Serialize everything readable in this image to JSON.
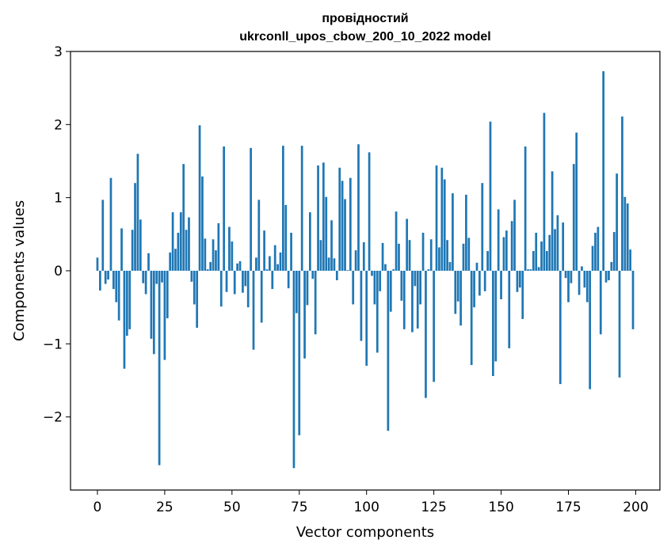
{
  "chart_data": {
    "type": "bar",
    "title_line1": "провідностий",
    "title_line2": "ukrconll_upos_cbow_200_10_2022 model",
    "xlabel": "Vector components",
    "ylabel": "Components values",
    "xlim": [
      -10,
      209
    ],
    "ylim": [
      -3.0,
      3.0
    ],
    "xticks": [
      0,
      25,
      50,
      75,
      100,
      125,
      150,
      175,
      200
    ],
    "xtick_labels": [
      "0",
      "25",
      "50",
      "75",
      "100",
      "125",
      "150",
      "175",
      "200"
    ],
    "yticks": [
      -2,
      -1,
      0,
      1,
      2,
      3
    ],
    "ytick_labels": [
      "−2",
      "−1",
      "0",
      "1",
      "2",
      "3"
    ],
    "bar_color": "#1f77b4",
    "grid": false,
    "x": [
      0,
      1,
      2,
      3,
      4,
      5,
      6,
      7,
      8,
      9,
      10,
      11,
      12,
      13,
      14,
      15,
      16,
      17,
      18,
      19,
      20,
      21,
      22,
      23,
      24,
      25,
      26,
      27,
      28,
      29,
      30,
      31,
      32,
      33,
      34,
      35,
      36,
      37,
      38,
      39,
      40,
      41,
      42,
      43,
      44,
      45,
      46,
      47,
      48,
      49,
      50,
      51,
      52,
      53,
      54,
      55,
      56,
      57,
      58,
      59,
      60,
      61,
      62,
      63,
      64,
      65,
      66,
      67,
      68,
      69,
      70,
      71,
      72,
      73,
      74,
      75,
      76,
      77,
      78,
      79,
      80,
      81,
      82,
      83,
      84,
      85,
      86,
      87,
      88,
      89,
      90,
      91,
      92,
      93,
      94,
      95,
      96,
      97,
      98,
      99,
      100,
      101,
      102,
      103,
      104,
      105,
      106,
      107,
      108,
      109,
      110,
      111,
      112,
      113,
      114,
      115,
      116,
      117,
      118,
      119,
      120,
      121,
      122,
      123,
      124,
      125,
      126,
      127,
      128,
      129,
      130,
      131,
      132,
      133,
      134,
      135,
      136,
      137,
      138,
      139,
      140,
      141,
      142,
      143,
      144,
      145,
      146,
      147,
      148,
      149,
      150,
      151,
      152,
      153,
      154,
      155,
      156,
      157,
      158,
      159,
      160,
      161,
      162,
      163,
      164,
      165,
      166,
      167,
      168,
      169,
      170,
      171,
      172,
      173,
      174,
      175,
      176,
      177,
      178,
      179,
      180,
      181,
      182,
      183,
      184,
      185,
      186,
      187,
      188,
      189,
      190,
      191,
      192,
      193,
      194,
      195,
      196,
      197,
      198,
      199
    ],
    "values": [
      0.18,
      -0.27,
      0.97,
      -0.18,
      -0.12,
      1.27,
      -0.25,
      -0.43,
      -0.68,
      0.58,
      -1.34,
      -0.89,
      -0.8,
      0.56,
      1.2,
      1.6,
      0.7,
      -0.17,
      -0.32,
      0.24,
      -0.93,
      -1.14,
      -0.18,
      -2.66,
      -0.16,
      -1.22,
      -0.65,
      0.25,
      0.8,
      0.3,
      0.52,
      0.8,
      1.46,
      0.56,
      0.73,
      -0.15,
      -0.46,
      -0.78,
      1.99,
      1.29,
      0.44,
      0.02,
      0.12,
      0.43,
      0.28,
      0.65,
      -0.49,
      1.7,
      -0.29,
      0.6,
      0.4,
      -0.32,
      0.1,
      0.13,
      -0.3,
      -0.21,
      -0.5,
      1.68,
      -1.08,
      0.18,
      0.97,
      -0.71,
      0.55,
      0.02,
      0.2,
      -0.25,
      0.35,
      0.09,
      0.25,
      1.71,
      0.9,
      -0.24,
      0.52,
      -2.7,
      -0.58,
      -2.25,
      1.71,
      -1.2,
      -0.47,
      0.8,
      -0.11,
      -0.87,
      1.44,
      0.42,
      1.48,
      1.01,
      0.18,
      0.69,
      0.17,
      -0.13,
      1.41,
      1.23,
      0.98,
      0.01,
      1.27,
      -0.46,
      0.28,
      1.73,
      -0.96,
      0.39,
      -1.3,
      1.62,
      -0.07,
      -0.46,
      -1.12,
      -0.28,
      0.38,
      0.09,
      -2.19,
      -0.56,
      0.02,
      0.81,
      0.37,
      -0.41,
      -0.8,
      0.71,
      0.42,
      -0.84,
      -0.21,
      -0.79,
      -0.46,
      0.52,
      -1.74,
      0.02,
      0.43,
      -1.52,
      1.44,
      0.32,
      1.41,
      1.25,
      0.42,
      0.12,
      1.06,
      -0.59,
      -0.42,
      -0.75,
      0.37,
      1.04,
      0.45,
      -1.29,
      -0.5,
      0.11,
      -0.34,
      1.2,
      -0.28,
      0.27,
      2.04,
      -1.44,
      -1.24,
      0.84,
      -0.39,
      0.46,
      0.55,
      -1.06,
      0.68,
      0.97,
      -0.29,
      -0.23,
      -0.66,
      1.7,
      0.02,
      0.02,
      0.27,
      0.52,
      0.05,
      0.4,
      2.16,
      0.27,
      0.49,
      1.36,
      0.57,
      0.76,
      -1.55,
      0.66,
      -0.1,
      -0.43,
      -0.17,
      1.46,
      1.89,
      -0.33,
      0.06,
      -0.23,
      -0.43,
      -1.62,
      0.34,
      0.52,
      0.6,
      -0.87,
      2.73,
      -0.16,
      -0.13,
      0.12,
      0.53,
      1.33,
      -1.46,
      2.11,
      1.01,
      0.92,
      0.29,
      -0.8
    ]
  }
}
